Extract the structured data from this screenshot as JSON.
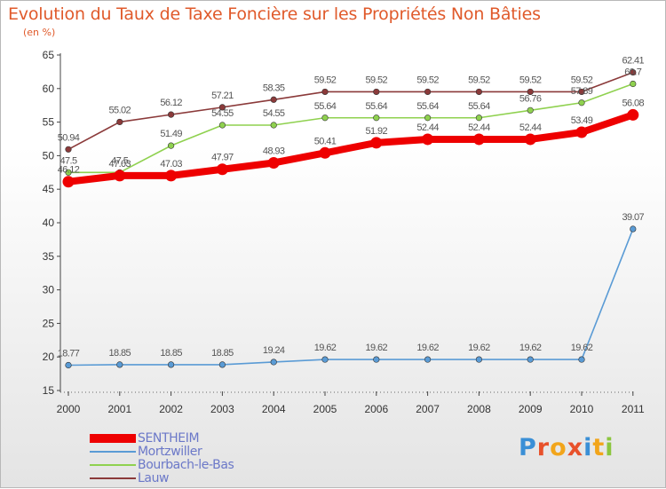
{
  "title": "Evolution du Taux de Taxe Foncière sur les Propriétés Non Bâties",
  "unit": "(en %)",
  "logo": {
    "text": "Proxiti",
    "letter_colors": [
      "#3a8fd6",
      "#e8512b",
      "#f2a51b",
      "#e8512b",
      "#3a8fd6",
      "#f2a51b",
      "#8cc63f"
    ]
  },
  "chart_data": {
    "type": "line",
    "title": "Evolution du Taux de Taxe Foncière sur les Propriétés Non Bâties",
    "ylabel": "(en %)",
    "xlabel": "",
    "x": [
      "2000",
      "2001",
      "2002",
      "2003",
      "2004",
      "2005",
      "2006",
      "2007",
      "2008",
      "2009",
      "2010",
      "2011"
    ],
    "ylim": [
      15,
      65
    ],
    "yticks": [
      15,
      20,
      25,
      30,
      35,
      40,
      45,
      50,
      55,
      60,
      65
    ],
    "grid": false,
    "legend_position": "bottom-left",
    "series": [
      {
        "name": "SENTHEIM",
        "color": "#ee0000",
        "thick": true,
        "values": [
          46.12,
          47.03,
          47.03,
          47.97,
          48.93,
          50.41,
          51.92,
          52.44,
          52.44,
          52.44,
          53.49,
          56.08
        ],
        "labels": [
          "46.12",
          "47.03",
          "47.03",
          "47.97",
          "48.93",
          "50.41",
          "51.92",
          "52.44",
          "52.44",
          "52.44",
          "53.49",
          "56.08"
        ]
      },
      {
        "name": "Mortzwiller",
        "color": "#5a9bd5",
        "thick": false,
        "values": [
          18.77,
          18.85,
          18.85,
          18.85,
          19.24,
          19.62,
          19.62,
          19.62,
          19.62,
          19.62,
          19.62,
          39.07
        ],
        "labels": [
          "18.77",
          "18.85",
          "18.85",
          "18.85",
          "19.24",
          "19.62",
          "19.62",
          "19.62",
          "19.62",
          "19.62",
          "19.62",
          "39.07"
        ]
      },
      {
        "name": "Bourbach-le-Bas",
        "color": "#8fd14f",
        "thick": false,
        "values": [
          47.5,
          47.5,
          51.49,
          54.55,
          54.55,
          55.64,
          55.64,
          55.64,
          55.64,
          56.76,
          57.89,
          60.7
        ],
        "labels": [
          "47.5",
          "47.5",
          "51.49",
          "54.55",
          "54.55",
          "55.64",
          "55.64",
          "55.64",
          "55.64",
          "56.76",
          "57.89",
          "60.7"
        ]
      },
      {
        "name": "Lauw",
        "color": "#8b3a3a",
        "thick": false,
        "values": [
          50.94,
          55.02,
          56.12,
          57.21,
          58.35,
          59.52,
          59.52,
          59.52,
          59.52,
          59.52,
          59.52,
          62.41
        ],
        "labels": [
          "50.94",
          "55.02",
          "56.12",
          "57.21",
          "58.35",
          "59.52",
          "59.52",
          "59.52",
          "59.52",
          "59.52",
          "59.52",
          "62.41"
        ]
      }
    ]
  }
}
